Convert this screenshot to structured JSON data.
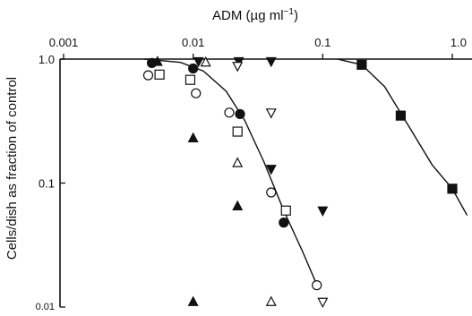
{
  "chart_data": {
    "type": "scatter",
    "title": "",
    "xlabel": "ADM (µg ml⁻¹)",
    "xlabel_main": "ADM (",
    "xlabel_unit": "µg ml",
    "xlabel_sup": "−1",
    "xlabel_close": ")",
    "ylabel": "Cells/dish as fraction of control",
    "x_scale": "log",
    "y_scale": "log",
    "x_axis_position": "top",
    "xlim": [
      0.001,
      1.0
    ],
    "ylim": [
      0.01,
      1.0
    ],
    "xticks": [
      0.001,
      0.01,
      0.1,
      1.0
    ],
    "xtick_labels": [
      "0.001",
      "0.01",
      "0.1",
      "1.0"
    ],
    "yticks": [
      0.01,
      0.1,
      1.0
    ],
    "ytick_labels": [
      "0.01",
      "0.1",
      "1.0"
    ],
    "grid": false,
    "legend": "none",
    "series": [
      {
        "marker": "filled-circle",
        "points": [
          {
            "x": 0.0048,
            "y": 0.93
          },
          {
            "x": 0.01,
            "y": 0.84
          },
          {
            "x": 0.023,
            "y": 0.36
          },
          {
            "x": 0.05,
            "y": 0.048
          }
        ]
      },
      {
        "marker": "open-circle",
        "points": [
          {
            "x": 0.0045,
            "y": 0.74
          },
          {
            "x": 0.0105,
            "y": 0.53
          },
          {
            "x": 0.019,
            "y": 0.37
          },
          {
            "x": 0.04,
            "y": 0.084
          },
          {
            "x": 0.09,
            "y": 0.015
          }
        ]
      },
      {
        "marker": "open-square",
        "points": [
          {
            "x": 0.0055,
            "y": 0.75
          },
          {
            "x": 0.0095,
            "y": 0.68
          },
          {
            "x": 0.022,
            "y": 0.26
          },
          {
            "x": 0.052,
            "y": 0.06
          }
        ]
      },
      {
        "marker": "filled-triangle-up",
        "points": [
          {
            "x": 0.0053,
            "y": 0.95
          },
          {
            "x": 0.01,
            "y": 0.23
          },
          {
            "x": 0.022,
            "y": 0.065
          },
          {
            "x": 0.01,
            "y": 0.011
          }
        ]
      },
      {
        "marker": "open-triangle-up",
        "points": [
          {
            "x": 0.0125,
            "y": 0.94
          },
          {
            "x": 0.022,
            "y": 0.145
          },
          {
            "x": 0.04,
            "y": 0.011
          }
        ]
      },
      {
        "marker": "filled-triangle-down",
        "points": [
          {
            "x": 0.011,
            "y": 0.96
          },
          {
            "x": 0.0225,
            "y": 0.96
          },
          {
            "x": 0.04,
            "y": 0.96
          },
          {
            "x": 0.04,
            "y": 0.13
          },
          {
            "x": 0.1,
            "y": 0.06
          }
        ]
      },
      {
        "marker": "open-triangle-down",
        "points": [
          {
            "x": 0.022,
            "y": 0.88
          },
          {
            "x": 0.04,
            "y": 0.37
          },
          {
            "x": 0.1,
            "y": 0.011
          }
        ]
      },
      {
        "marker": "filled-square",
        "points": [
          {
            "x": 0.2,
            "y": 0.9
          },
          {
            "x": 0.4,
            "y": 0.35
          },
          {
            "x": 1.0,
            "y": 0.09
          }
        ]
      }
    ],
    "fitted_curves": [
      {
        "points": [
          {
            "x": 0.0042,
            "y": 1.0
          },
          {
            "x": 0.008,
            "y": 0.94
          },
          {
            "x": 0.012,
            "y": 0.8
          },
          {
            "x": 0.018,
            "y": 0.55
          },
          {
            "x": 0.025,
            "y": 0.32
          },
          {
            "x": 0.035,
            "y": 0.15
          },
          {
            "x": 0.05,
            "y": 0.06
          },
          {
            "x": 0.07,
            "y": 0.028
          },
          {
            "x": 0.088,
            "y": 0.016
          }
        ]
      },
      {
        "points": [
          {
            "x": 0.13,
            "y": 1.0
          },
          {
            "x": 0.2,
            "y": 0.9
          },
          {
            "x": 0.3,
            "y": 0.6
          },
          {
            "x": 0.45,
            "y": 0.3
          },
          {
            "x": 0.7,
            "y": 0.14
          },
          {
            "x": 1.0,
            "y": 0.09
          },
          {
            "x": 1.3,
            "y": 0.055
          }
        ]
      }
    ]
  }
}
